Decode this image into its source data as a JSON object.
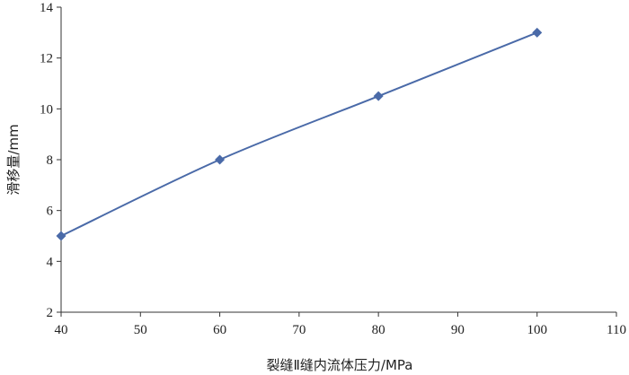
{
  "chart_data": {
    "type": "line",
    "xlabel": "裂缝Ⅱ缝内流体压力/MPa",
    "ylabel": "滑移量/mm",
    "xlim": [
      40,
      110
    ],
    "ylim": [
      2,
      14
    ],
    "xticks": [
      40,
      50,
      60,
      70,
      80,
      90,
      100,
      110
    ],
    "yticks": [
      2,
      4,
      6,
      8,
      10,
      12,
      14
    ],
    "grid": false,
    "series": [
      {
        "x": [
          40,
          60,
          80,
          100
        ],
        "y": [
          5,
          8,
          10.5,
          13
        ],
        "color": "#4a6aa8",
        "marker": "diamond"
      }
    ]
  }
}
